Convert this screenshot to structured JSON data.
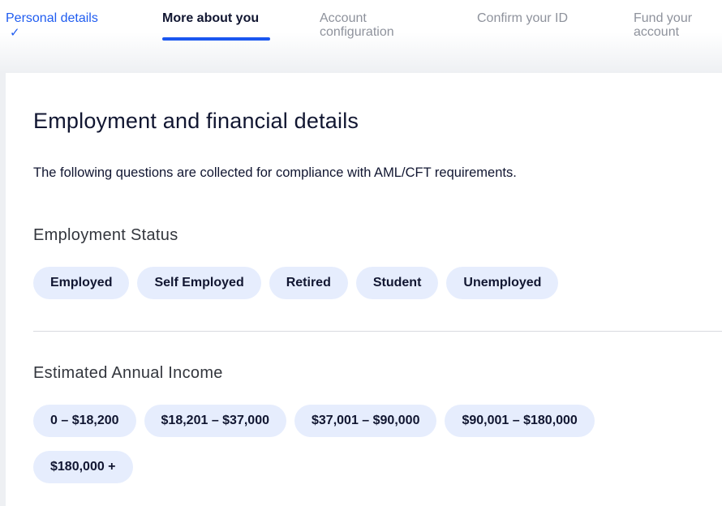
{
  "steps": [
    {
      "label": "Personal details",
      "state": "done"
    },
    {
      "label": "More about you",
      "state": "active"
    },
    {
      "label_lines": [
        "Account",
        "configuration"
      ],
      "state": "upcoming"
    },
    {
      "label": "Confirm your ID",
      "state": "upcoming"
    },
    {
      "label_lines": [
        "Fund your",
        "account"
      ],
      "state": "upcoming"
    }
  ],
  "check_icon": "✓",
  "colors": {
    "accent": "#1f5cf0",
    "pill_bg": "#e6edfd",
    "text": "#111631"
  },
  "title": "Employment and financial details",
  "subtitle": "The following questions are collected for compliance with AML/CFT requirements.",
  "employment": {
    "heading": "Employment Status",
    "options": [
      "Employed",
      "Self Employed",
      "Retired",
      "Student",
      "Unemployed"
    ]
  },
  "income": {
    "heading": "Estimated Annual Income",
    "options": [
      "0 – $18,200",
      "$18,201 – $37,000",
      "$37,001 – $90,000",
      "$90,001 – $180,000",
      "$180,000 +"
    ]
  }
}
